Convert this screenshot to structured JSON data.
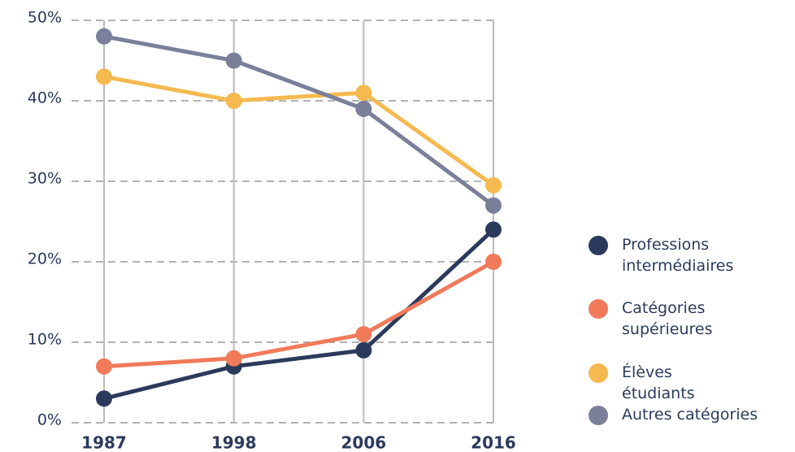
{
  "chart_data": {
    "type": "line",
    "categories": [
      "1987",
      "1998",
      "2006",
      "2016"
    ],
    "series": [
      {
        "name": "Professions intermédiaires",
        "color": "#2b3a5c",
        "values": [
          3,
          7,
          9,
          24
        ]
      },
      {
        "name": "Catégories supérieures",
        "color": "#f07a5a",
        "values": [
          7,
          8,
          11,
          20
        ]
      },
      {
        "name": "Élèves étudiants",
        "color": "#f5b94f",
        "values": [
          43,
          40,
          41,
          29.5
        ]
      },
      {
        "name": "Autres catégories",
        "color": "#7a7f9a",
        "values": [
          48,
          45,
          39,
          27
        ]
      }
    ],
    "ylim": [
      0,
      50
    ],
    "yticks": [
      {
        "value": 0,
        "label": "0%"
      },
      {
        "value": 10,
        "label": "10%"
      },
      {
        "value": 20,
        "label": "20%"
      },
      {
        "value": 30,
        "label": "30%"
      },
      {
        "value": 40,
        "label": "40%"
      },
      {
        "value": 50,
        "label": "50%"
      }
    ],
    "grid": true,
    "legend": "right"
  }
}
